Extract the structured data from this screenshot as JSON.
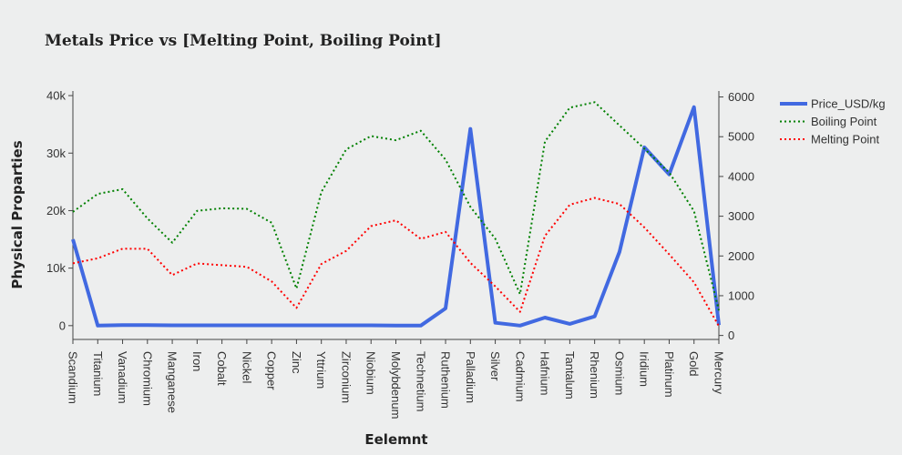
{
  "chart_data": {
    "type": "line",
    "title": "Metals Price vs [Melting Point, Boiling Point]",
    "xlabel": "Eelemnt",
    "ylabel": "Physical Proparties",
    "categories": [
      "Scandium",
      "Titanium",
      "Vanadium",
      "Chromium",
      "Manganese",
      "Iron",
      "Cobalt",
      "Nickel",
      "Copper",
      "Zinc",
      "Yttrium",
      "Zirconium",
      "Niobium",
      "Molybdenum",
      "Technetium",
      "Ruthenium",
      "Palladium",
      "Silver",
      "Cadmium",
      "Hafnium",
      "Tantalum",
      "Rhenium",
      "Osmium",
      "Iridium",
      "Platinum",
      "Gold",
      "Mercury"
    ],
    "y_left_ticks": [
      "0",
      "10k",
      "20k",
      "30k",
      "40k"
    ],
    "y_left_range": [
      -2400,
      40800
    ],
    "y_right_ticks": [
      "0",
      "1000",
      "2000",
      "3000",
      "4000",
      "5000",
      "6000"
    ],
    "y_right_range": [
      -100,
      6150
    ],
    "legend_position": "top-right",
    "series": [
      {
        "name": "Price_USD/kg",
        "axis": "left",
        "color": "#4169e1",
        "dash": "solid",
        "values": [
          15000,
          0,
          100,
          100,
          50,
          50,
          50,
          50,
          50,
          50,
          50,
          50,
          50,
          0,
          0,
          3000,
          34200,
          500,
          0,
          1400,
          300,
          1600,
          12800,
          31000,
          26300,
          38000,
          100
        ]
      },
      {
        "name": "Boiling Point",
        "axis": "right",
        "color": "#008000",
        "dash": "dot",
        "values": [
          3109,
          3560,
          3680,
          2944,
          2334,
          3134,
          3200,
          3186,
          2835,
          1180,
          3609,
          4682,
          5017,
          4912,
          5150,
          4423,
          3236,
          2435,
          1040,
          4876,
          5731,
          5869,
          5285,
          4701,
          4098,
          3129,
          630
        ]
      },
      {
        "name": "Melting Point",
        "axis": "right",
        "color": "#ff0000",
        "dash": "dot",
        "values": [
          1814,
          1941,
          2183,
          2180,
          1519,
          1811,
          1768,
          1728,
          1358,
          693,
          1799,
          2128,
          2750,
          2896,
          2430,
          2607,
          1828,
          1235,
          594,
          2506,
          3290,
          3459,
          3306,
          2719,
          2041,
          1337,
          234
        ]
      }
    ]
  }
}
